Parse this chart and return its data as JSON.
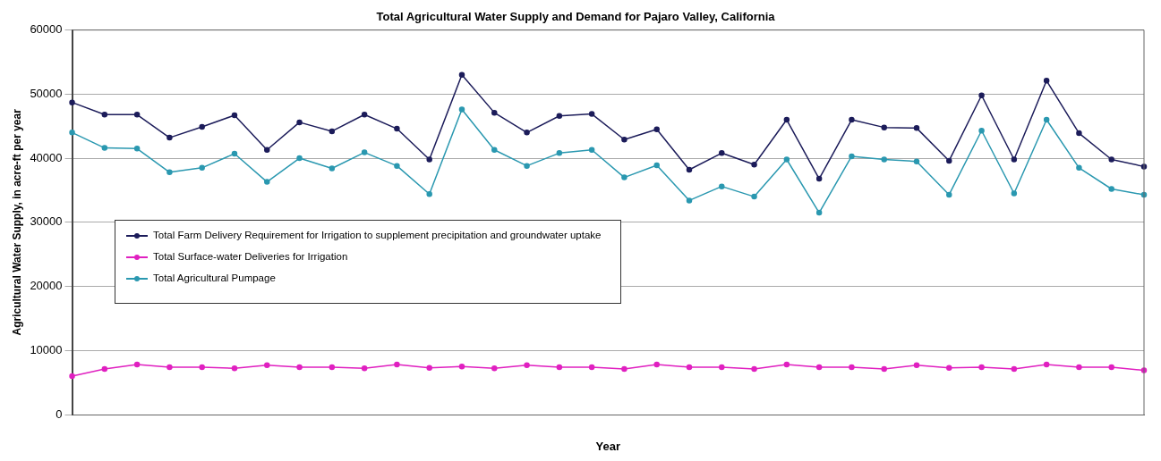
{
  "chart_data": {
    "type": "line",
    "title": "Total Agricultural Water Supply and Demand for Pajaro Valley, California",
    "xlabel": "Year",
    "ylabel": "Agricultural Water Supply, in acre-ft per year",
    "categories": [
      null,
      null,
      null,
      null,
      null,
      null,
      null,
      null,
      null,
      null,
      null,
      null,
      null,
      null,
      null,
      null,
      null,
      null,
      null,
      null,
      null,
      null,
      null,
      null,
      null,
      null,
      null,
      null,
      null,
      null,
      null,
      null,
      null,
      null
    ],
    "series": [
      {
        "name": "Total Farm Delivery Requirement for Irrigation to supplement precipitation and groundwater uptake",
        "color": "#1c1c5a",
        "values": [
          48700,
          46800,
          46800,
          43200,
          44900,
          46700,
          41300,
          45600,
          44200,
          46800,
          44600,
          39800,
          53000,
          47100,
          44000,
          46600,
          46900,
          42900,
          44500,
          38200,
          40800,
          39000,
          46000,
          36800,
          46000,
          44800,
          44700,
          39600,
          49800,
          39800,
          52100,
          43900,
          39800,
          38700
        ]
      },
      {
        "name": "Total Surface-water Deliveries for Irrigation",
        "color": "#e020c0",
        "values": [
          6000,
          7100,
          7800,
          7400,
          7400,
          7200,
          7700,
          7400,
          7400,
          7200,
          7800,
          7300,
          7500,
          7200,
          7700,
          7400,
          7400,
          7100,
          7800,
          7400,
          7400,
          7100,
          7800,
          7400,
          7400,
          7100,
          7700,
          7300,
          7400,
          7100,
          7800,
          7400,
          7400,
          6900
        ]
      },
      {
        "name": "Total Agricultural Pumpage",
        "color": "#2a98b0",
        "values": [
          44000,
          41600,
          41500,
          37800,
          38500,
          40700,
          36300,
          40000,
          38400,
          40900,
          38800,
          34400,
          47600,
          41300,
          38800,
          40800,
          41300,
          37000,
          38900,
          33400,
          35600,
          34000,
          39800,
          31500,
          40300,
          39800,
          39500,
          34300,
          44300,
          34500,
          46000,
          38500,
          35200,
          34300
        ]
      }
    ],
    "ylim": [
      0,
      60000
    ],
    "yticks": [
      0,
      10000,
      20000,
      30000,
      40000,
      50000,
      60000
    ],
    "grid": "y",
    "legend": "left",
    "marker": "circle",
    "line_style": "solid"
  }
}
